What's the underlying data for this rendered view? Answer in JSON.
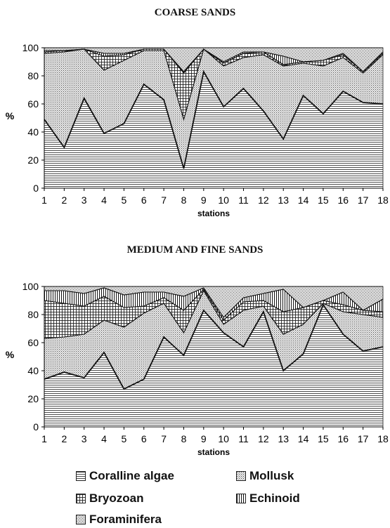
{
  "chart_data": [
    {
      "type": "area",
      "title": "COARSE SANDS",
      "xlabel": "stations",
      "ylabel": "%",
      "x": [
        1,
        2,
        3,
        4,
        5,
        6,
        7,
        8,
        9,
        10,
        11,
        12,
        13,
        14,
        15,
        16,
        17,
        18
      ],
      "ylim": [
        0,
        100
      ],
      "yticks": [
        0,
        20,
        40,
        60,
        80,
        100
      ],
      "stacked": true,
      "series": [
        {
          "name": "Coralline algae",
          "values": [
            49,
            29,
            64,
            39,
            46,
            74,
            63,
            14,
            83,
            58,
            71,
            55,
            35,
            66,
            53,
            69,
            61,
            60
          ]
        },
        {
          "name": "Mollusk",
          "values": [
            47,
            68,
            35,
            45,
            45,
            24,
            35,
            35,
            16,
            29,
            22,
            40,
            52,
            23,
            34,
            24,
            21,
            35
          ]
        },
        {
          "name": "Bryozoan",
          "values": [
            1,
            1,
            0,
            10,
            4,
            1,
            1,
            33,
            0,
            2,
            3,
            2,
            1,
            1,
            4,
            2,
            1,
            1
          ]
        },
        {
          "name": "Echinoid",
          "values": [
            1,
            0,
            0,
            2,
            1,
            0,
            0,
            1,
            0,
            1,
            1,
            0,
            6,
            0,
            0,
            1,
            0,
            1
          ]
        },
        {
          "name": "Foraminifera",
          "values": [
            2,
            2,
            1,
            4,
            4,
            1,
            1,
            17,
            1,
            10,
            3,
            3,
            6,
            10,
            9,
            4,
            17,
            3
          ]
        }
      ]
    },
    {
      "type": "area",
      "title": "MEDIUM AND FINE SANDS",
      "xlabel": "stations",
      "ylabel": "%",
      "x": [
        1,
        2,
        3,
        4,
        5,
        6,
        7,
        8,
        9,
        10,
        11,
        12,
        13,
        14,
        15,
        16,
        17,
        18
      ],
      "ylim": [
        0,
        100
      ],
      "yticks": [
        0,
        20,
        40,
        60,
        80,
        100
      ],
      "stacked": true,
      "series": [
        {
          "name": "Coralline algae",
          "values": [
            34,
            39,
            35,
            53,
            27,
            34,
            64,
            51,
            83,
            67,
            57,
            82,
            40,
            52,
            87,
            66,
            54,
            57
          ]
        },
        {
          "name": "Mollusk",
          "values": [
            29,
            25,
            31,
            23,
            44,
            47,
            24,
            16,
            14,
            6,
            26,
            4,
            26,
            21,
            1,
            16,
            26,
            21
          ]
        },
        {
          "name": "Bryozoan",
          "values": [
            27,
            24,
            20,
            17,
            14,
            5,
            4,
            16,
            1,
            3,
            6,
            4,
            16,
            12,
            2,
            5,
            3,
            4
          ]
        },
        {
          "name": "Echinoid",
          "values": [
            7,
            9,
            9,
            6,
            9,
            10,
            4,
            10,
            1,
            2,
            3,
            5,
            16,
            0,
            0,
            9,
            0,
            9
          ]
        },
        {
          "name": "Foraminifera",
          "values": [
            3,
            3,
            5,
            1,
            6,
            4,
            4,
            7,
            1,
            22,
            8,
            5,
            2,
            15,
            10,
            4,
            17,
            9
          ]
        }
      ]
    }
  ],
  "legend": [
    {
      "label": "Coralline algae",
      "pattern": "hlines"
    },
    {
      "label": "Mollusk",
      "pattern": "dots"
    },
    {
      "label": "Bryozoan",
      "pattern": "grid"
    },
    {
      "label": "Echinoid",
      "pattern": "vlines"
    },
    {
      "label": "Foraminifera",
      "pattern": "stipple"
    }
  ]
}
